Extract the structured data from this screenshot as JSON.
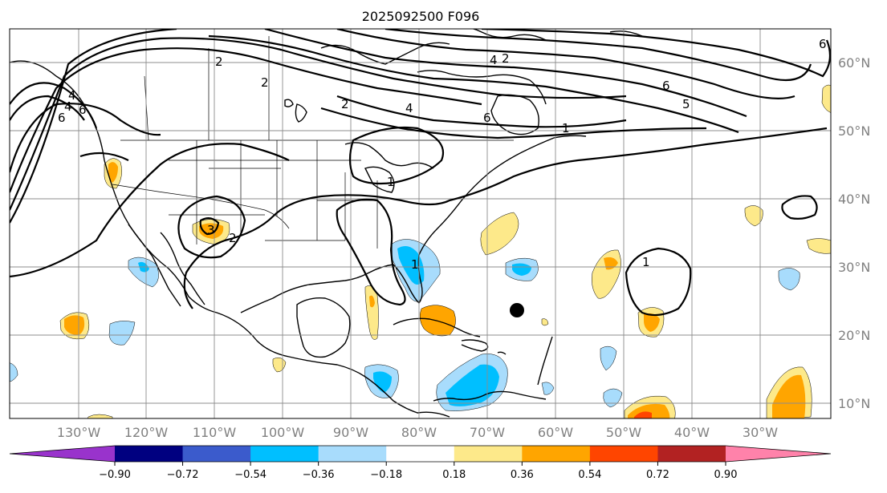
{
  "title": "2025092500 F096",
  "lon_labels": [
    "130°W",
    "120°W",
    "110°W",
    "100°W",
    "90°W",
    "80°W",
    "70°W",
    "60°W",
    "50°W",
    "40°W",
    "30°W"
  ],
  "lat_labels": [
    "60°N",
    "50°N",
    "40°N",
    "30°N",
    "20°N",
    "10°N"
  ],
  "colorbar": {
    "ticks": [
      "−0.90",
      "−0.72",
      "−0.54",
      "−0.36",
      "−0.18",
      "0.18",
      "0.36",
      "0.54",
      "0.72",
      "0.90"
    ],
    "colors": [
      "#9933cc",
      "#000080",
      "#3b5bcc",
      "#00bfff",
      "#a8dcfc",
      "#ffffff",
      "#fde98a",
      "#ffa500",
      "#ff4500",
      "#b22222",
      "#ff82aa"
    ]
  },
  "contour_labels": [
    "6",
    "4",
    "6",
    "4",
    "2",
    "4",
    "2",
    "6",
    "6",
    "5",
    "4",
    "2",
    "6",
    "2",
    "3",
    "2",
    "1",
    "1",
    "1",
    "1"
  ],
  "storm_marker": "filled-circle"
}
